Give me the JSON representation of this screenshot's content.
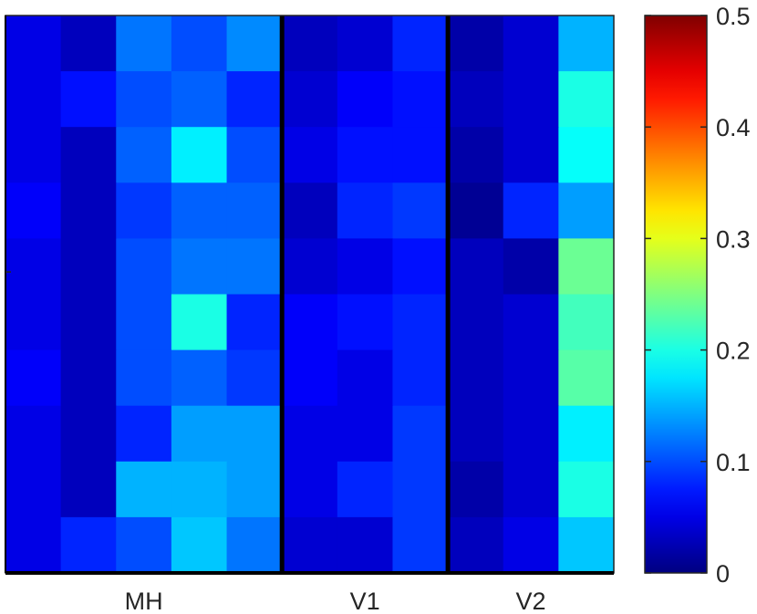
{
  "chart_data": {
    "type": "heatmap",
    "title": "",
    "xlabel": "",
    "ylabel": "",
    "rows": 10,
    "columns": 11,
    "x_tick_labels": [
      "MH",
      "V1",
      "V2"
    ],
    "x_tick_column_groups": [
      [
        0,
        4
      ],
      [
        5,
        7
      ],
      [
        8,
        10
      ]
    ],
    "group_separators_after_column": [
      4,
      7
    ],
    "colormap": "jet",
    "clim": [
      0,
      0.5
    ],
    "colorbar": {
      "placement": "right",
      "ticks": [
        0,
        0.1,
        0.2,
        0.3,
        0.4,
        0.5
      ],
      "tick_labels": [
        "0",
        "0.1",
        "0.2",
        "0.3",
        "0.4",
        "0.5"
      ]
    },
    "values": [
      [
        0.05,
        0.03,
        0.12,
        0.1,
        0.13,
        0.03,
        0.04,
        0.08,
        0.02,
        0.04,
        0.15
      ],
      [
        0.05,
        0.07,
        0.1,
        0.11,
        0.08,
        0.04,
        0.06,
        0.07,
        0.03,
        0.04,
        0.2
      ],
      [
        0.05,
        0.03,
        0.11,
        0.18,
        0.1,
        0.05,
        0.07,
        0.07,
        0.02,
        0.04,
        0.19
      ],
      [
        0.06,
        0.03,
        0.09,
        0.11,
        0.11,
        0.03,
        0.08,
        0.09,
        0.01,
        0.08,
        0.14
      ],
      [
        0.05,
        0.03,
        0.1,
        0.12,
        0.12,
        0.04,
        0.05,
        0.07,
        0.03,
        0.02,
        0.24
      ],
      [
        0.05,
        0.03,
        0.1,
        0.2,
        0.08,
        0.06,
        0.07,
        0.08,
        0.03,
        0.04,
        0.22
      ],
      [
        0.06,
        0.03,
        0.1,
        0.11,
        0.09,
        0.06,
        0.05,
        0.08,
        0.03,
        0.04,
        0.23
      ],
      [
        0.05,
        0.03,
        0.08,
        0.14,
        0.14,
        0.05,
        0.05,
        0.09,
        0.03,
        0.04,
        0.18
      ],
      [
        0.05,
        0.03,
        0.15,
        0.15,
        0.14,
        0.05,
        0.08,
        0.09,
        0.02,
        0.04,
        0.2
      ],
      [
        0.05,
        0.08,
        0.1,
        0.16,
        0.12,
        0.04,
        0.04,
        0.09,
        0.03,
        0.05,
        0.16
      ]
    ]
  }
}
